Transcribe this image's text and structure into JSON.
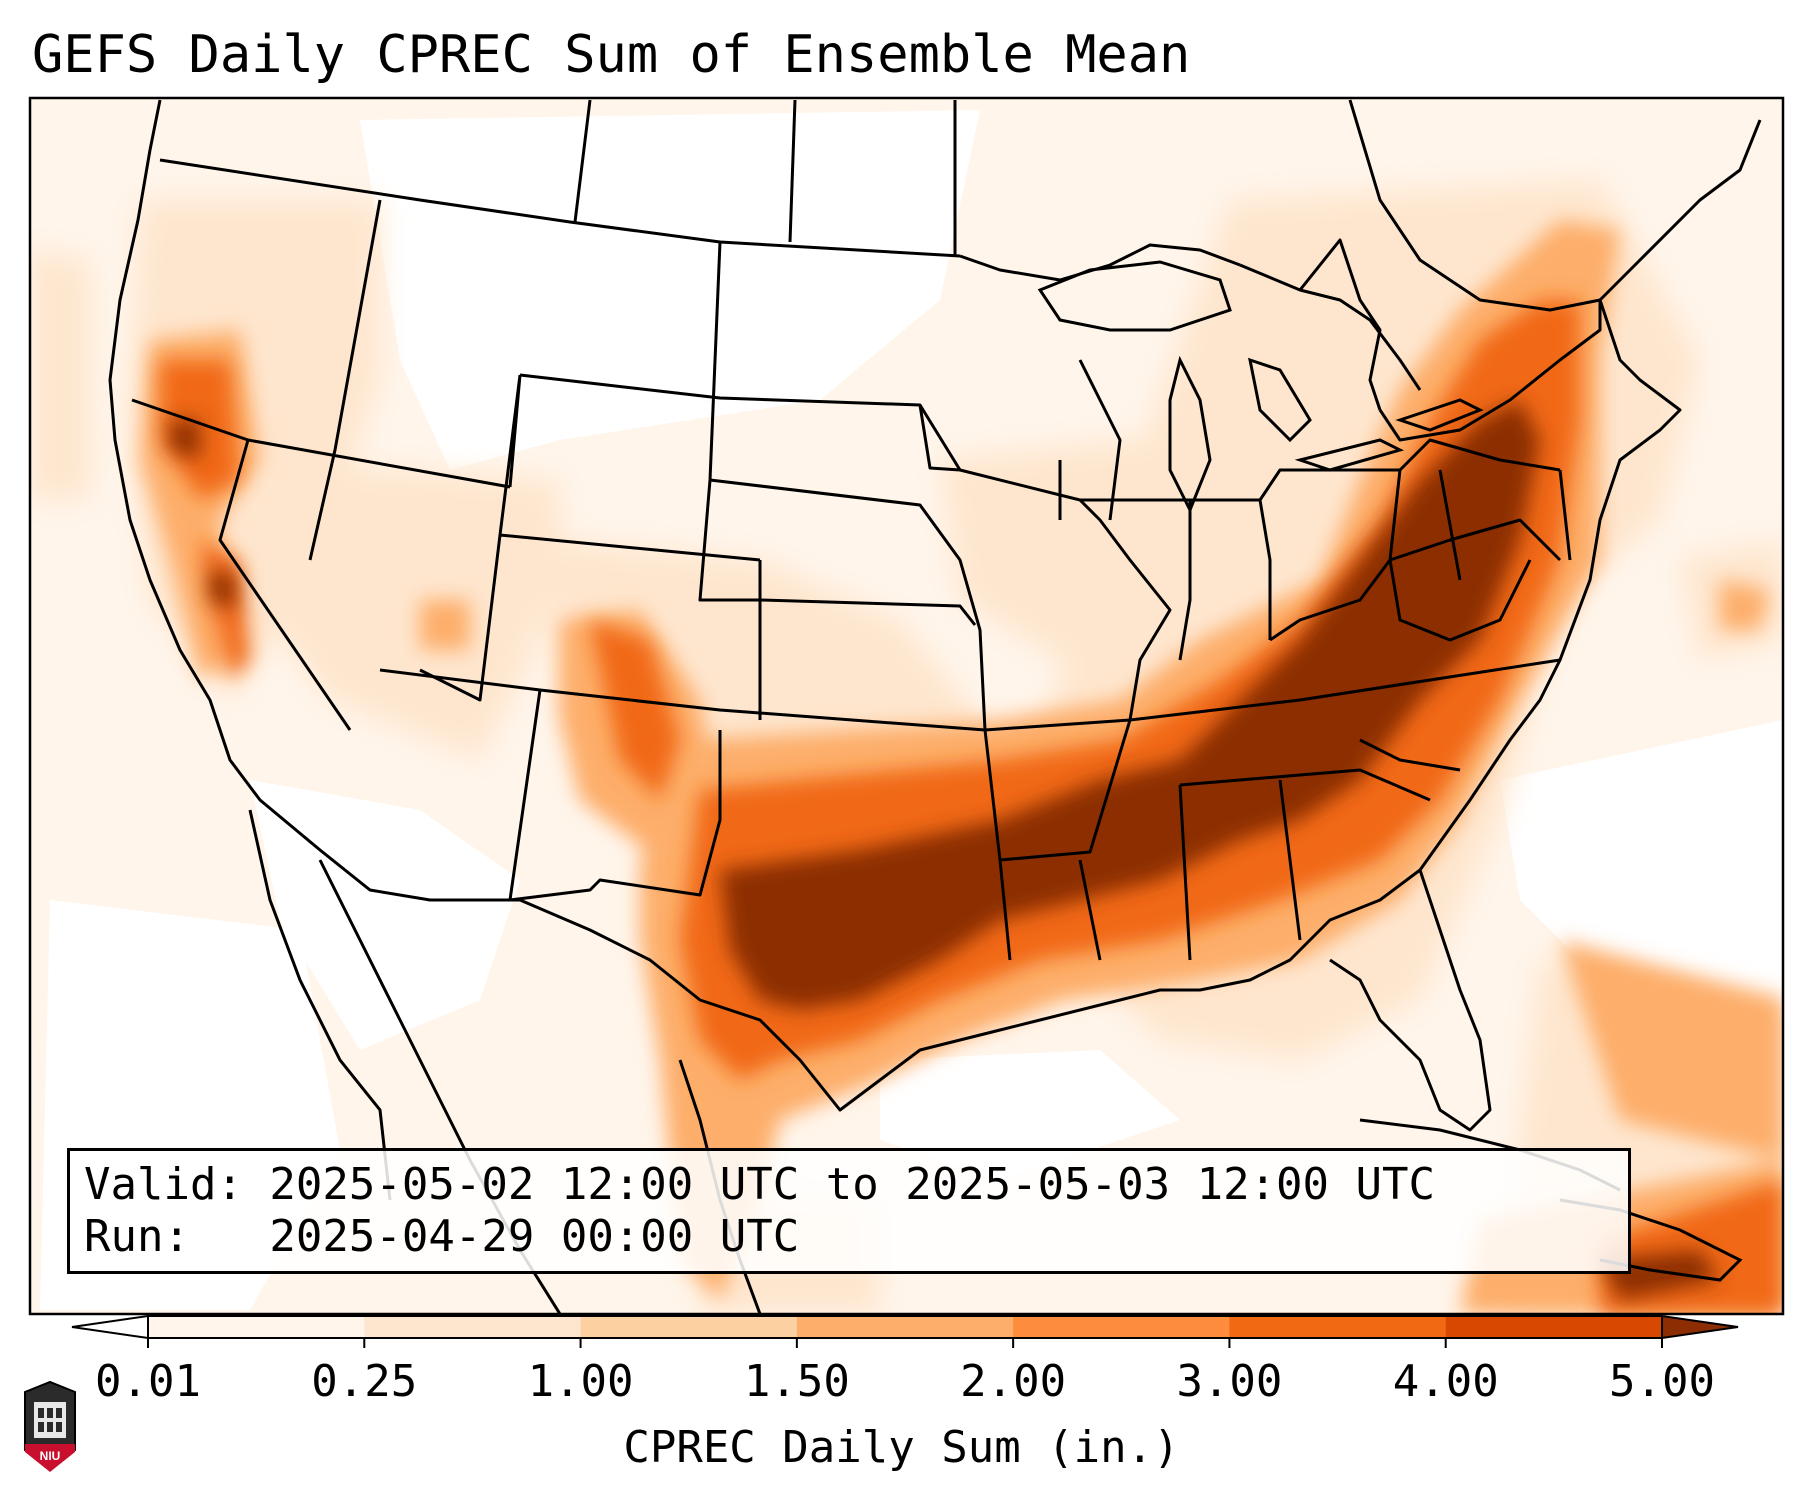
{
  "title": "GEFS Daily CPREC Sum of Ensemble Mean",
  "info": {
    "valid": "Valid: 2025-05-02 12:00 UTC to 2025-05-03 12:00 UTC",
    "run": "Run:   2025-04-29 00:00 UTC"
  },
  "colorbar": {
    "label": "CPREC Daily Sum (in.)",
    "ticks": [
      "0.01",
      "0.25",
      "1.00",
      "1.50",
      "2.00",
      "3.00",
      "4.00",
      "5.00"
    ],
    "colors": [
      "#fff5eb",
      "#fee6ce",
      "#fdd0a2",
      "#fdae6b",
      "#fd8d3c",
      "#f16913",
      "#d94801",
      "#8c2d04"
    ]
  },
  "logo": {
    "text": "NIU"
  },
  "colors": {
    "level1": "#fff5eb",
    "level2": "#fee6ce",
    "level3": "#fdd0a2",
    "level4": "#fdae6b",
    "level5": "#fd8d3c",
    "level6": "#f16913",
    "level7": "#d94801",
    "level8": "#8c2d04",
    "logo_red": "#c8102e"
  }
}
